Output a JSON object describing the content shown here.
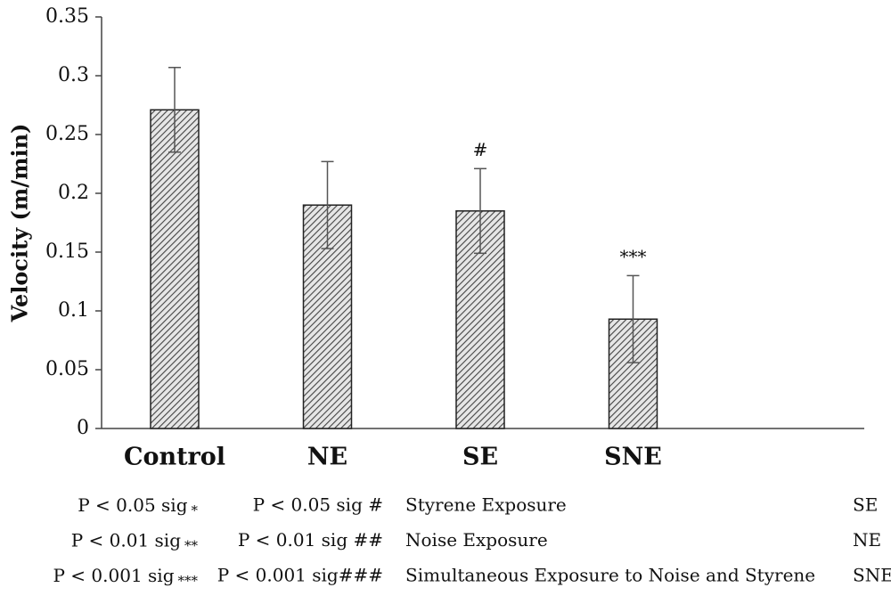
{
  "chart_data": {
    "type": "bar",
    "y_label": "Velocity (m/min)",
    "categories": [
      "Control",
      "NE",
      "SE",
      "SNE"
    ],
    "values": [
      0.271,
      0.19,
      0.185,
      0.093
    ],
    "errors": [
      0.036,
      0.037,
      0.036,
      0.037
    ],
    "annotations": [
      {
        "category": "SE",
        "text": "#"
      },
      {
        "category": "SNE",
        "text": "***"
      }
    ],
    "color": "#444444",
    "ylim": [
      0,
      0.35
    ],
    "yticks": [
      0,
      0.05,
      0.1,
      0.15,
      0.2,
      0.25,
      0.3,
      0.35
    ],
    "grid": false
  },
  "footnotes": [
    {
      "star": {
        "text": "P < 0.05 sig",
        "mark": "*"
      },
      "hash": "P < 0.05 sig #",
      "term": "Styrene Exposure",
      "abbr": "SE"
    },
    {
      "star": {
        "text": "P < 0.01 sig",
        "mark": "**"
      },
      "hash": "P < 0.01 sig ##",
      "term": "Noise Exposure",
      "abbr": "NE"
    },
    {
      "star": {
        "text": "P < 0.001 sig",
        "mark": "***"
      },
      "hash": "P < 0.001 sig###",
      "term": "Simultaneous Exposure to Noise and Styrene",
      "abbr": "SNE"
    }
  ]
}
